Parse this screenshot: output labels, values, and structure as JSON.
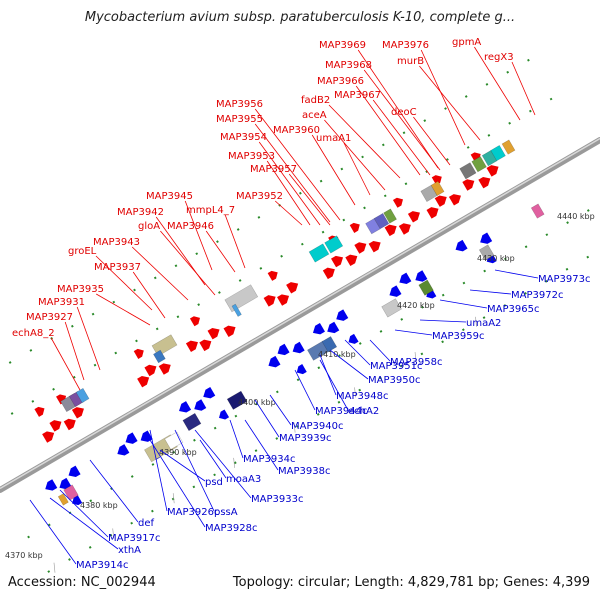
{
  "title": "Mycobacterium avium subsp. paratuberculosis K-10, complete g...",
  "footer": {
    "accession": "Accession: NC_002944",
    "topology": "Topology: circular; Length: 4,829,781 bp; Genes: 4,399"
  },
  "ticks": [
    "4370 kbp",
    "4380 kbp",
    "4390 kbp",
    "4400 kbp",
    "4410 kbp",
    "4420 kbp",
    "4430 kbp",
    "4440 kbp"
  ],
  "forward_labels": [
    "echA8_2",
    "MAP3927",
    "MAP3931",
    "MAP3935",
    "MAP3937",
    "groEL",
    "MAP3943",
    "gloA",
    "MAP3942",
    "MAP3946",
    "MAP3945",
    "mmpL4_7",
    "MAP3952",
    "MAP3953",
    "MAP3954",
    "MAP3955",
    "MAP3956",
    "MAP3957",
    "MAP3960",
    "umaA1",
    "aceA",
    "fadB2",
    "MAP3967",
    "MAP3966",
    "MAP3968",
    "MAP3969",
    "deoC",
    "MAP3976",
    "murB",
    "gpmA",
    "regX3"
  ],
  "reverse_labels": [
    "MAP3914c",
    "xthA",
    "MAP3917c",
    "def",
    "MAP3926c",
    "MAP3928c",
    "pssA",
    "psd",
    "moaA3",
    "MAP3933c",
    "MAP3934c",
    "MAP3938c",
    "MAP3939c",
    "MAP3940c",
    "MAP3944c",
    "echA2",
    "MAP3948c",
    "MAP3950c",
    "MAP3951c",
    "MAP3958c",
    "MAP3959c",
    "umaA2",
    "MAP3965c",
    "MAP3972c",
    "MAP3973c"
  ]
}
